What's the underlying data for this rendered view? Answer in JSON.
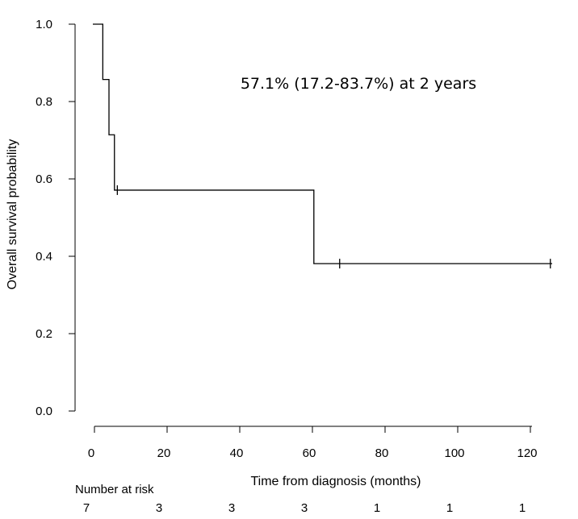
{
  "chart_data": {
    "type": "line",
    "subtype": "kaplan-meier-step",
    "title": "",
    "annotation": "57.1% (17.2-83.7%) at 2 years",
    "xlabel": "Time from diagnosis (months)",
    "ylabel": "Overall survival probability",
    "xlim": [
      0,
      125
    ],
    "ylim": [
      0,
      1.0
    ],
    "x_ticks": [
      0,
      20,
      40,
      60,
      80,
      100,
      120
    ],
    "x_tick_labels": [
      "0",
      "20",
      "40",
      "60",
      "80",
      "100",
      "120"
    ],
    "y_ticks": [
      0.0,
      0.2,
      0.4,
      0.6,
      0.8,
      1.0
    ],
    "y_tick_labels": [
      "0.0",
      "0.2",
      "0.4",
      "0.6",
      "0.8",
      "1.0"
    ],
    "grid": false,
    "series": [
      {
        "name": "Overall survival",
        "steps": [
          {
            "x": 0,
            "y": 1.0
          },
          {
            "x": 2.3,
            "y": 0.857
          },
          {
            "x": 4.0,
            "y": 0.714
          },
          {
            "x": 5.5,
            "y": 0.571
          },
          {
            "x": 60.4,
            "y": 0.381
          },
          {
            "x": 126,
            "y": 0.381
          }
        ],
        "censored": [
          {
            "x": 6.3,
            "y": 0.571
          },
          {
            "x": 67.5,
            "y": 0.381
          },
          {
            "x": 125.5,
            "y": 0.381
          }
        ]
      }
    ],
    "risk_table": {
      "label": "Number at risk",
      "times": [
        0,
        20,
        40,
        60,
        80,
        100,
        120
      ],
      "counts": [
        "7",
        "3",
        "3",
        "3",
        "1",
        "1",
        "1"
      ]
    }
  }
}
